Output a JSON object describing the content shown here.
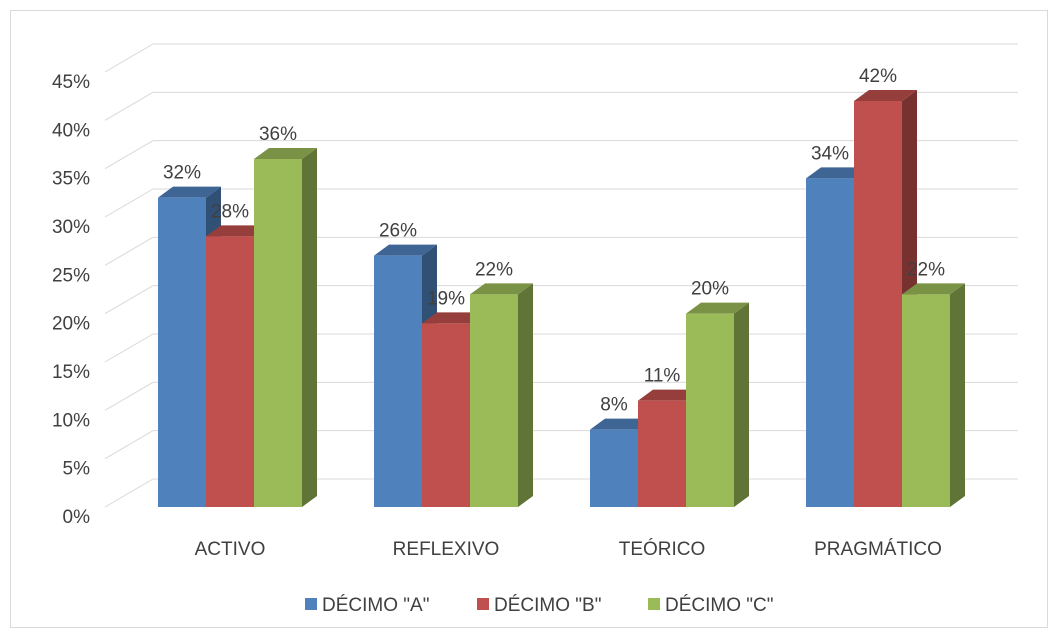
{
  "chart_data": {
    "type": "bar",
    "style": "3d-clustered-column",
    "categories": [
      "ACTIVO",
      "REFLEXIVO",
      "TEÓRICO",
      "PRAGMÁTICO"
    ],
    "series": [
      {
        "name": "DÉCIMO \"A\"",
        "values": [
          32,
          26,
          8,
          34
        ],
        "labels": [
          "32%",
          "26%",
          "8%",
          "34%"
        ],
        "color": "#4f81bd"
      },
      {
        "name": "DÉCIMO \"B\"",
        "values": [
          28,
          19,
          11,
          42
        ],
        "labels": [
          "28%",
          "19%",
          "11%",
          "42%"
        ],
        "color": "#c0504d"
      },
      {
        "name": "DÉCIMO \"C\"",
        "values": [
          36,
          22,
          20,
          22
        ],
        "labels": [
          "36%",
          "22%",
          "20%",
          "22%"
        ],
        "color": "#9bbb59"
      }
    ],
    "y_ticks": [
      "0%",
      "5%",
      "10%",
      "15%",
      "20%",
      "25%",
      "30%",
      "35%",
      "40%",
      "45%"
    ],
    "ylim": [
      0,
      45
    ],
    "grid": true,
    "legend_position": "bottom"
  }
}
